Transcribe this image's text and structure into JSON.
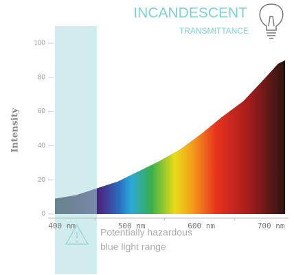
{
  "chart_data": {
    "type": "area",
    "title": "INCANDESCENT",
    "subtitle": "TRANSMITTANCE",
    "y_label": "Intensity",
    "annotation": [
      "Potentially hazardous",
      "blue light range"
    ],
    "x": [
      390,
      420,
      450,
      480,
      510,
      540,
      570,
      600,
      630,
      660,
      690,
      710,
      720
    ],
    "values": [
      9,
      11,
      15,
      19,
      25,
      31,
      38,
      47,
      57,
      66,
      79,
      88,
      90
    ],
    "hazard_range": [
      390,
      450
    ],
    "xlim": [
      390,
      720
    ],
    "ylim": [
      0,
      100
    ],
    "xticks": [
      {
        "value": 400,
        "label": "400 nm"
      },
      {
        "value": 500,
        "label": "500 nm"
      },
      {
        "value": 600,
        "label": "600 nm"
      },
      {
        "value": 700,
        "label": "700 nm"
      }
    ],
    "yticks": [
      0,
      20,
      40,
      60,
      80,
      100
    ]
  }
}
